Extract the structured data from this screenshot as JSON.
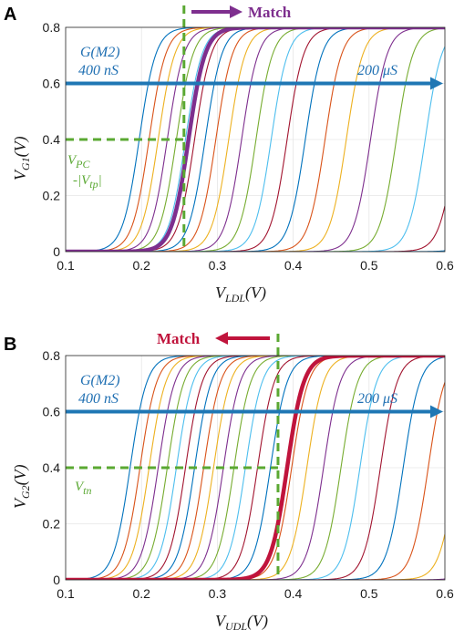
{
  "colors": {
    "purple": "#7e2f8e",
    "crimson": "#c0143c",
    "blue": "#1f77b4",
    "green": "#5aa832",
    "grid": "#e6e6e6",
    "palette": [
      "#0072bd",
      "#d95319",
      "#edb120",
      "#7e2f8e",
      "#77ac30",
      "#4dbeee",
      "#a2142f"
    ]
  },
  "chart_data": [
    {
      "type": "line",
      "panel_label": "A",
      "xlabel": {
        "main": "V",
        "sub": "LDL",
        "tail": "(V)"
      },
      "ylabel": {
        "main": "V",
        "sub": "G1",
        "tail": "(V)"
      },
      "xlim": [
        0.1,
        0.6
      ],
      "ylim": [
        0,
        0.8
      ],
      "xticks": [
        "0.1",
        "0.2",
        "0.3",
        "0.4",
        "0.5",
        "0.6"
      ],
      "yticks": [
        "0",
        "0.2",
        "0.4",
        "0.6",
        "0.8"
      ],
      "grid": true,
      "sweep_direction": "rising",
      "family_midpoints_V": [
        0.197,
        0.21,
        0.222,
        0.234,
        0.246,
        0.258,
        0.27,
        0.284,
        0.298,
        0.315,
        0.332,
        0.351,
        0.371,
        0.392,
        0.416,
        0.442,
        0.47,
        0.502,
        0.536,
        0.574,
        0.615,
        0.66
      ],
      "family_width_V": 0.011,
      "highlight": {
        "name": "Match",
        "midpoint_V": 0.262,
        "color": "#7e2f8e"
      },
      "v_marker_x": 0.256,
      "h_marker_y": 0.4,
      "sweep_arrow_y": 0.6,
      "annotations": {
        "g_label": "G(M2)",
        "g_start": "400 nS",
        "g_end": "200 μS",
        "bias_line1": "V",
        "bias_line1_sub": "PC",
        "bias_line2": "-|V",
        "bias_line2_sub": "tp",
        "bias_line2_tail": "|",
        "match": "Match"
      }
    },
    {
      "type": "line",
      "panel_label": "B",
      "xlabel": {
        "main": "V",
        "sub": "UDL",
        "tail": "(V)"
      },
      "ylabel": {
        "main": "V",
        "sub": "G2",
        "tail": "(V)"
      },
      "xlim": [
        0.1,
        0.6
      ],
      "ylim": [
        0,
        0.8
      ],
      "xticks": [
        "0.1",
        "0.2",
        "0.3",
        "0.4",
        "0.5",
        "0.6"
      ],
      "yticks": [
        "0",
        "0.2",
        "0.4",
        "0.6",
        "0.8"
      ],
      "grid": true,
      "sweep_direction": "rising",
      "family_midpoints_V": [
        0.185,
        0.198,
        0.21,
        0.222,
        0.234,
        0.246,
        0.258,
        0.27,
        0.282,
        0.295,
        0.308,
        0.322,
        0.337,
        0.353,
        0.37,
        0.398,
        0.418,
        0.44,
        0.463,
        0.488,
        0.515,
        0.545,
        0.578,
        0.615,
        0.66
      ],
      "family_width_V": 0.011,
      "highlight": {
        "name": "Match",
        "midpoint_V": 0.392,
        "color": "#c0143c"
      },
      "v_marker_x": 0.38,
      "h_marker_y": 0.4,
      "sweep_arrow_y": 0.6,
      "annotations": {
        "g_label": "G(M2)",
        "g_start": "400 nS",
        "g_end": "200 μS",
        "bias_line1": "V",
        "bias_line1_sub": "tn",
        "match": "Match"
      }
    }
  ]
}
